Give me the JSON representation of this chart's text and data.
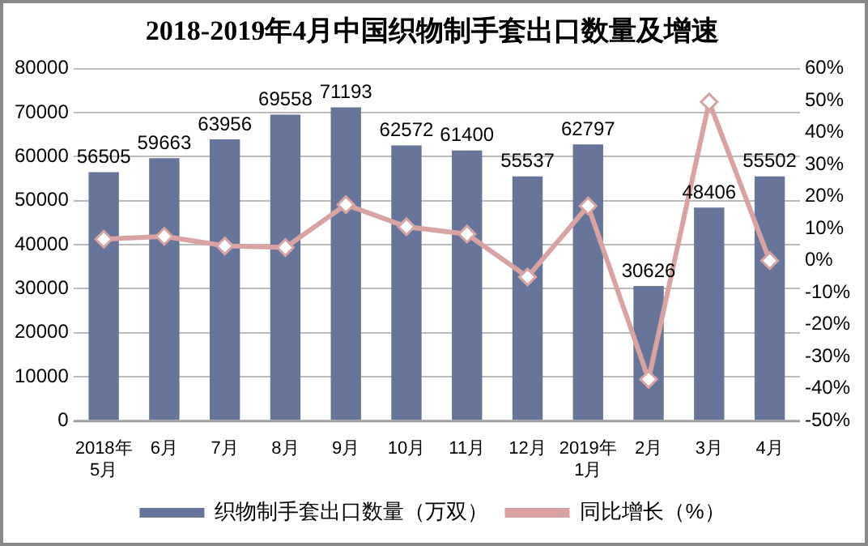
{
  "chart_data": {
    "type": "bar",
    "title": "2018-2019年4月中国织物制手套出口数量及增速",
    "categories": [
      "2018年\n5月",
      "6月",
      "7月",
      "8月",
      "9月",
      "10月",
      "11月",
      "12月",
      "2019年\n1月",
      "2月",
      "3月",
      "4月"
    ],
    "series": [
      {
        "name": "织物制手套出口数量（万双）",
        "color": "#67759b",
        "values": [
          56505,
          59663,
          63956,
          69558,
          71193,
          62572,
          61400,
          55537,
          62797,
          30626,
          48406,
          55502
        ],
        "value_labels": [
          "56505",
          "59663",
          "63956",
          "69558",
          "71193",
          "62572",
          "61400",
          "55537",
          "62797",
          "30626",
          "48406",
          "55502"
        ]
      },
      {
        "name": "同比增长（%）",
        "type": "line",
        "axis": "y2",
        "color": "#d9a3a3",
        "marker": "diamond",
        "values": [
          6.7,
          7.6,
          4.6,
          4.1,
          17.5,
          10.6,
          8.3,
          -5.1,
          17.1,
          -37.1,
          49.6,
          0
        ]
      }
    ],
    "ylim": [
      0,
      80000
    ],
    "yticks": [
      0,
      10000,
      20000,
      30000,
      40000,
      50000,
      60000,
      70000,
      80000
    ],
    "y2lim": [
      -50,
      60
    ],
    "y2ticks": [
      {
        "value": -50,
        "label": "-50%"
      },
      {
        "value": -40,
        "label": "-40%"
      },
      {
        "value": -30,
        "label": "-30%"
      },
      {
        "value": -20,
        "label": "-20%"
      },
      {
        "value": -10,
        "label": "-10%"
      },
      {
        "value": 0,
        "label": "0%"
      },
      {
        "value": 10,
        "label": "10%"
      },
      {
        "value": 20,
        "label": "20%"
      },
      {
        "value": 30,
        "label": "30%"
      },
      {
        "value": 40,
        "label": "40%"
      },
      {
        "value": 50,
        "label": "50%"
      },
      {
        "value": 60,
        "label": "60%"
      }
    ],
    "grid": "y",
    "legend": "bottom"
  }
}
